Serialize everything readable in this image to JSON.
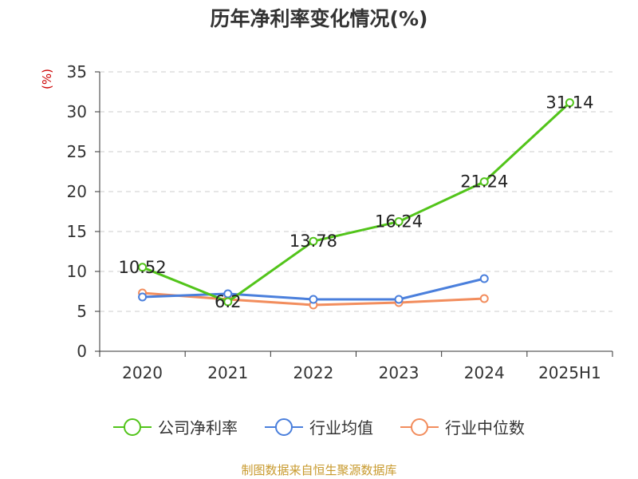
{
  "chart_data": {
    "type": "line",
    "title": "历年净利率变化情况(%)",
    "ylabel": "(%)",
    "categories": [
      "2020",
      "2021",
      "2022",
      "2023",
      "2024",
      "2025H1"
    ],
    "ylim": [
      0,
      35
    ],
    "yticks": [
      "0",
      "5",
      "10",
      "15",
      "20",
      "25",
      "30",
      "35"
    ],
    "grid": true,
    "legend_position": "bottom",
    "series": [
      {
        "name": "公司净利率",
        "color": "#52c41a",
        "values": [
          10.52,
          6.2,
          13.78,
          16.24,
          21.24,
          31.14
        ],
        "labels": [
          "10.52",
          "6.2",
          "13.78",
          "16.24",
          "21.24",
          "31.14"
        ]
      },
      {
        "name": "行业均值",
        "color": "#4a7fdc",
        "values": [
          6.8,
          7.2,
          6.5,
          6.5,
          9.1,
          null
        ],
        "labels": null
      },
      {
        "name": "行业中位数",
        "color": "#f28d5d",
        "values": [
          7.3,
          6.5,
          5.8,
          6.1,
          6.6,
          null
        ],
        "labels": null
      }
    ]
  },
  "source": "制图数据来自恒生聚源数据库"
}
